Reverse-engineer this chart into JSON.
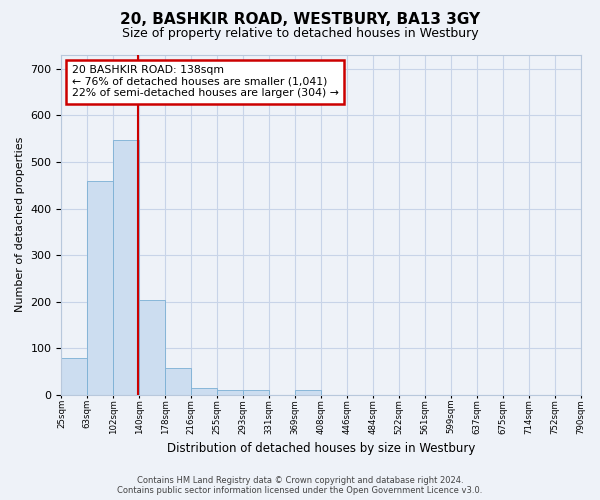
{
  "title": "20, BASHKIR ROAD, WESTBURY, BA13 3GY",
  "subtitle": "Size of property relative to detached houses in Westbury",
  "xlabel": "Distribution of detached houses by size in Westbury",
  "ylabel": "Number of detached properties",
  "bar_heights": [
    78,
    460,
    548,
    203,
    57,
    14,
    9,
    9,
    0,
    9,
    0,
    0,
    0,
    0,
    0,
    0,
    0,
    0,
    0,
    0
  ],
  "x_tick_labels": [
    "25sqm",
    "63sqm",
    "102sqm",
    "140sqm",
    "178sqm",
    "216sqm",
    "255sqm",
    "293sqm",
    "331sqm",
    "369sqm",
    "408sqm",
    "446sqm",
    "484sqm",
    "522sqm",
    "561sqm",
    "599sqm",
    "637sqm",
    "675sqm",
    "714sqm",
    "752sqm",
    "790sqm"
  ],
  "bar_color": "#ccddf0",
  "bar_edge_color": "#7bafd4",
  "grid_color": "#c8d4e8",
  "red_line_bin": 2.95,
  "red_line_color": "#cc0000",
  "annotation_text": "20 BASHKIR ROAD: 138sqm\n← 76% of detached houses are smaller (1,041)\n22% of semi-detached houses are larger (304) →",
  "annotation_box_color": "white",
  "annotation_box_edge": "#cc0000",
  "ylim": [
    0,
    730
  ],
  "yticks": [
    0,
    100,
    200,
    300,
    400,
    500,
    600,
    700
  ],
  "footer_line1": "Contains HM Land Registry data © Crown copyright and database right 2024.",
  "footer_line2": "Contains public sector information licensed under the Open Government Licence v3.0.",
  "bg_color": "#eef2f8",
  "plot_bg_color": "#eef2f8",
  "title_fontsize": 11,
  "subtitle_fontsize": 9
}
